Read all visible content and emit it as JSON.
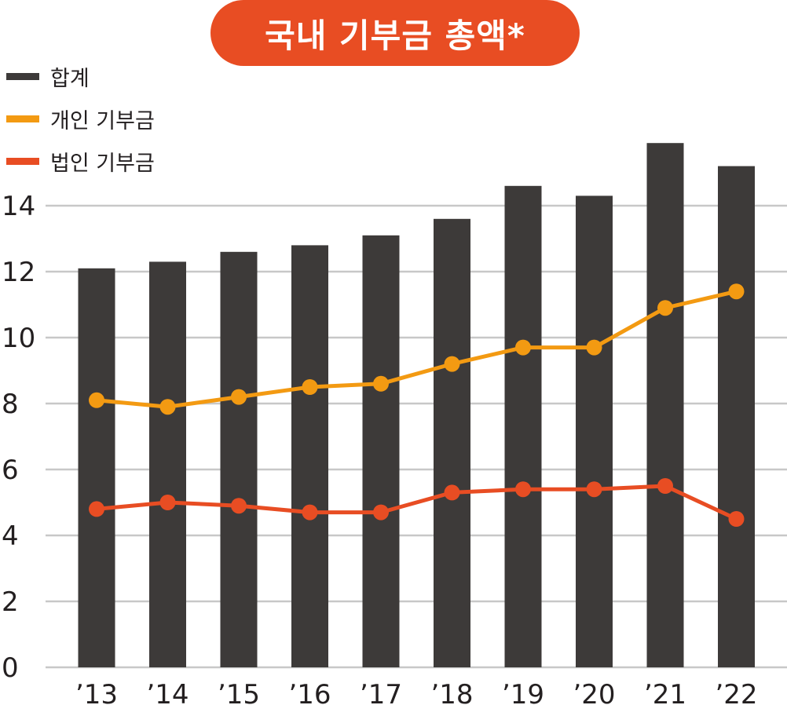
{
  "title": "국내 기부금 총액*",
  "colors": {
    "total": "#3d3a39",
    "individual": "#f39a12",
    "corporate": "#e84d23",
    "grid": "#c8c8c8",
    "text": "#231f20",
    "title_bg": "#e84d23"
  },
  "chart_data": {
    "type": "bar",
    "title": "국내 기부금 총액*",
    "xlabel": "",
    "ylabel": "",
    "ylim": [
      0,
      16
    ],
    "yticks": [
      0,
      2,
      4,
      6,
      8,
      10,
      12,
      14
    ],
    "categories": [
      "’13",
      "’14",
      "’15",
      "’16",
      "’17",
      "’18",
      "’19",
      "’20",
      "’21",
      "’22"
    ],
    "grid": true,
    "legend_position": "top-left",
    "series": [
      {
        "name": "합계",
        "type": "bar",
        "values": [
          12.1,
          12.3,
          12.6,
          12.8,
          13.1,
          13.6,
          14.6,
          14.3,
          15.9,
          15.2
        ]
      },
      {
        "name": "개인 기부금",
        "type": "line",
        "values": [
          8.1,
          7.9,
          8.2,
          8.5,
          8.6,
          9.2,
          9.7,
          9.7,
          10.9,
          11.4
        ]
      },
      {
        "name": "법인 기부금",
        "type": "line",
        "values": [
          4.8,
          5.0,
          4.9,
          4.7,
          4.7,
          5.3,
          5.4,
          5.4,
          5.5,
          4.5
        ]
      }
    ]
  }
}
